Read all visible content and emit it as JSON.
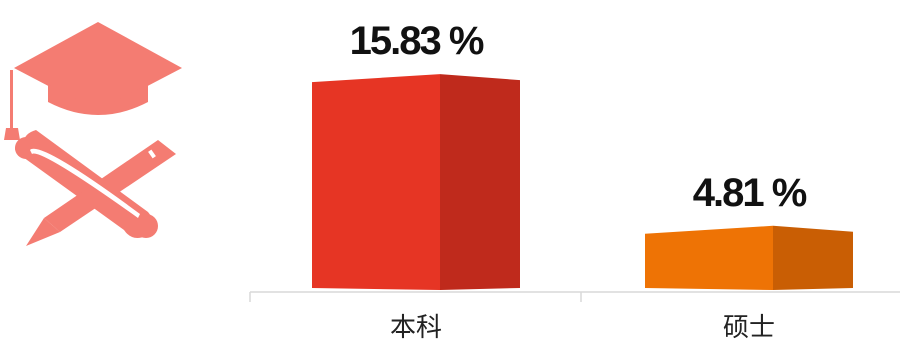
{
  "icon": {
    "name": "graduation-cap-diploma-pencil-icon",
    "color": "#F47C72"
  },
  "chart_data": {
    "type": "bar",
    "categories": [
      "本科",
      "硕士"
    ],
    "values": [
      15.83,
      4.81
    ],
    "value_labels": [
      "15.83 %",
      "4.81 %"
    ],
    "colors": [
      {
        "front": "#E63524",
        "side": "#BF2A1C",
        "top": "#EC4A3A"
      },
      {
        "front": "#EE7305",
        "side": "#C95E04",
        "top": "#F2862A"
      }
    ],
    "ylim": [
      0,
      17
    ],
    "grid": false,
    "legend": "none"
  }
}
